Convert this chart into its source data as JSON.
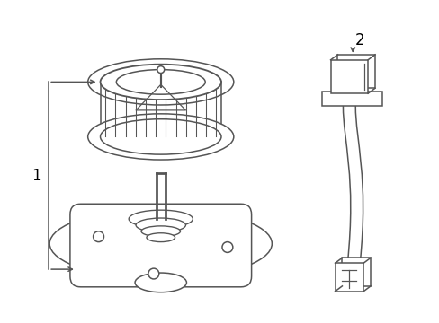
{
  "bg_color": "#ffffff",
  "line_color": "#555555",
  "label_color": "#000000",
  "fig_width": 4.89,
  "fig_height": 3.6,
  "dpi": 100,
  "label1": "1",
  "label2": "2"
}
